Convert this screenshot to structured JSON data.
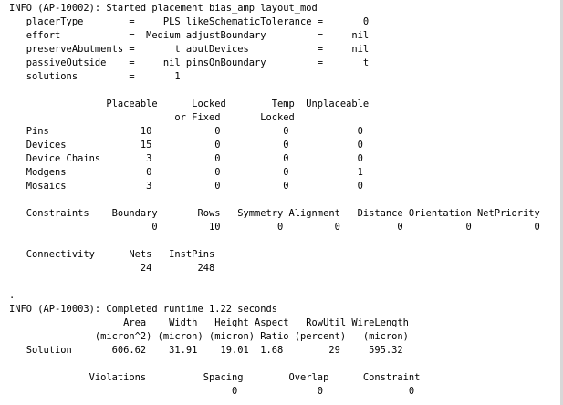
{
  "console": {
    "lines": [
      "INFO (AP-10002): Started placement bias_amp layout_mod",
      "   placerType        =     PLS likeSchematicTolerance =       0",
      "   effort            =  Medium adjustBoundary         =     nil",
      "   preserveAbutments =       t abutDevices            =     nil",
      "   passiveOutside    =     nil pinsOnBoundary         =       t",
      "   solutions         =       1",
      "",
      "                 Placeable      Locked        Temp  Unplaceable",
      "                             or Fixed       Locked",
      "   Pins                10           0           0            0",
      "   Devices             15           0           0            0",
      "   Device Chains        3           0           0            0",
      "   Modgens              0           0           0            1",
      "   Mosaics              3           0           0            0",
      "",
      "   Constraints    Boundary       Rows   Symmetry Alignment   Distance Orientation NetPriority",
      "                         0         10          0         0          0           0           0",
      "",
      "   Connectivity      Nets   InstPins",
      "                       24        248",
      "",
      ".",
      "INFO (AP-10003): Completed runtime 1.22 seconds",
      "                    Area    Width   Height Aspect   RowUtil WireLength",
      "               (micron^2) (micron) (micron) Ratio (percent)   (micron)",
      "   Solution       606.62    31.91    19.01  1.68        29     595.32",
      "",
      "              Violations          Spacing        Overlap      Constraint",
      "                                       0              0               0"
    ]
  }
}
